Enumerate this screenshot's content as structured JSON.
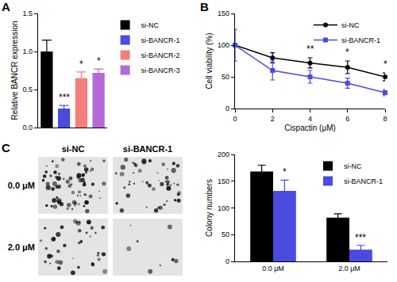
{
  "chart_data": [
    {
      "panel": "A",
      "type": "bar",
      "categories": [
        "si-NC",
        "si-BANCR-1",
        "si-BANCR-2",
        "si-BANCR-3"
      ],
      "values": [
        1.0,
        0.25,
        0.65,
        0.72
      ],
      "errors": [
        0.15,
        0.04,
        0.08,
        0.05
      ],
      "colors": [
        "#000000",
        "#4b4be0",
        "#f47f7a",
        "#b46ad8"
      ],
      "y_label": "Relative BANCR expression",
      "ylim": [
        0,
        1.5
      ],
      "yticks": [
        {
          "value": 0,
          "label": "0.0"
        },
        {
          "value": 0.5,
          "label": "0.5"
        },
        {
          "value": 1.0,
          "label": "1.0"
        },
        {
          "value": 1.5,
          "label": "1.5"
        }
      ],
      "tick_labels": "y",
      "grid": false,
      "legend": "right",
      "annotations": [
        {
          "category": "si-BANCR-1",
          "text": "***"
        },
        {
          "category": "si-BANCR-2",
          "text": "*"
        },
        {
          "category": "si-BANCR-3",
          "text": "*"
        }
      ]
    },
    {
      "panel": "B",
      "type": "line",
      "x": [
        0,
        2,
        4,
        6,
        8
      ],
      "series": [
        {
          "name": "si-NC",
          "color": "#000000",
          "marker": "circle",
          "values": [
            100,
            80,
            72,
            65,
            50
          ],
          "errors": [
            0,
            8,
            8,
            10,
            6
          ]
        },
        {
          "name": "si-BANCR-1",
          "color": "#4b4be0",
          "marker": "square",
          "values": [
            100,
            60,
            50,
            40,
            25
          ],
          "errors": [
            25,
            15,
            10,
            8,
            5
          ]
        }
      ],
      "x_label": "Cispactin (μM)",
      "y_label": "Cell viability (%)",
      "xlim": [
        0,
        8
      ],
      "xticks": [
        0,
        2,
        4,
        6,
        8
      ],
      "ylim": [
        0,
        150
      ],
      "yticks": [
        0,
        50,
        100,
        150
      ],
      "grid": false,
      "legend": "top right",
      "annotations": [
        {
          "x": 4,
          "text": "**"
        },
        {
          "x": 6,
          "text": "*"
        },
        {
          "x": 8,
          "text": "*"
        }
      ]
    },
    {
      "type": "bar",
      "categories": [
        "0.0 μM",
        "2.0 μM"
      ],
      "series": [
        {
          "name": "si-NC",
          "color": "#000000",
          "values": [
            168,
            82
          ],
          "errors": [
            12,
            7
          ]
        },
        {
          "name": "si-BANCR-1",
          "color": "#4b4be0",
          "values": [
            132,
            22
          ],
          "errors": [
            20,
            8
          ]
        }
      ],
      "y_label": "Colony numbers",
      "ylim": [
        0,
        200
      ],
      "yticks": [
        0,
        50,
        100,
        150,
        200
      ],
      "grid": false,
      "legend": "top right",
      "annotations": [
        {
          "category": "0.0 μM",
          "series": "si-BANCR-1",
          "text": "*"
        },
        {
          "category": "2.0 μM",
          "series": "si-BANCR-1",
          "text": "***"
        }
      ]
    }
  ],
  "colony_images": {
    "panel": "C",
    "columns": [
      "si-NC",
      "si-BANCR-1"
    ],
    "rows": [
      "0.0 μM",
      "2.0 μM"
    ]
  }
}
